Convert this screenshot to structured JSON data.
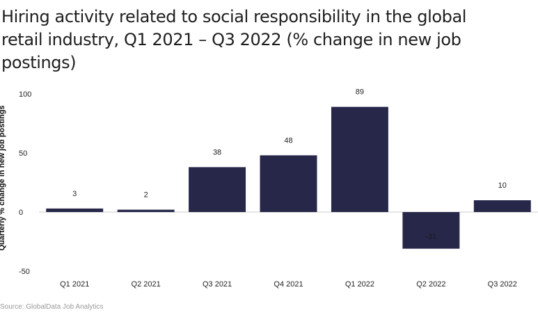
{
  "title": "Hiring activity related to social responsibility in the global retail industry, Q1 2021 – Q3 2022 (% change in new job postings)",
  "source": "Source: GlobalData Job Analytics",
  "colors": {
    "bar": "#27274a",
    "zero_line": "#cccccc",
    "text": "#222222"
  },
  "chart_data": {
    "type": "bar",
    "title": "Hiring activity related to social responsibility in the global retail industry, Q1 2021 – Q3 2022 (% change in new job postings)",
    "xlabel": "",
    "ylabel": "Quarterly % change in new job postings",
    "categories": [
      "Q1 2021",
      "Q2 2021",
      "Q3 2021",
      "Q4 2021",
      "Q1 2022",
      "Q2 2022",
      "Q3 2022"
    ],
    "values": [
      3,
      2,
      38,
      48,
      89,
      -31,
      10
    ],
    "data_labels": [
      "3",
      "2",
      "38",
      "48",
      "89",
      "-31",
      "10"
    ],
    "yticks": [
      100,
      50,
      0,
      -50
    ],
    "ylim": [
      -50,
      100
    ],
    "grid": false,
    "legend": "none"
  }
}
